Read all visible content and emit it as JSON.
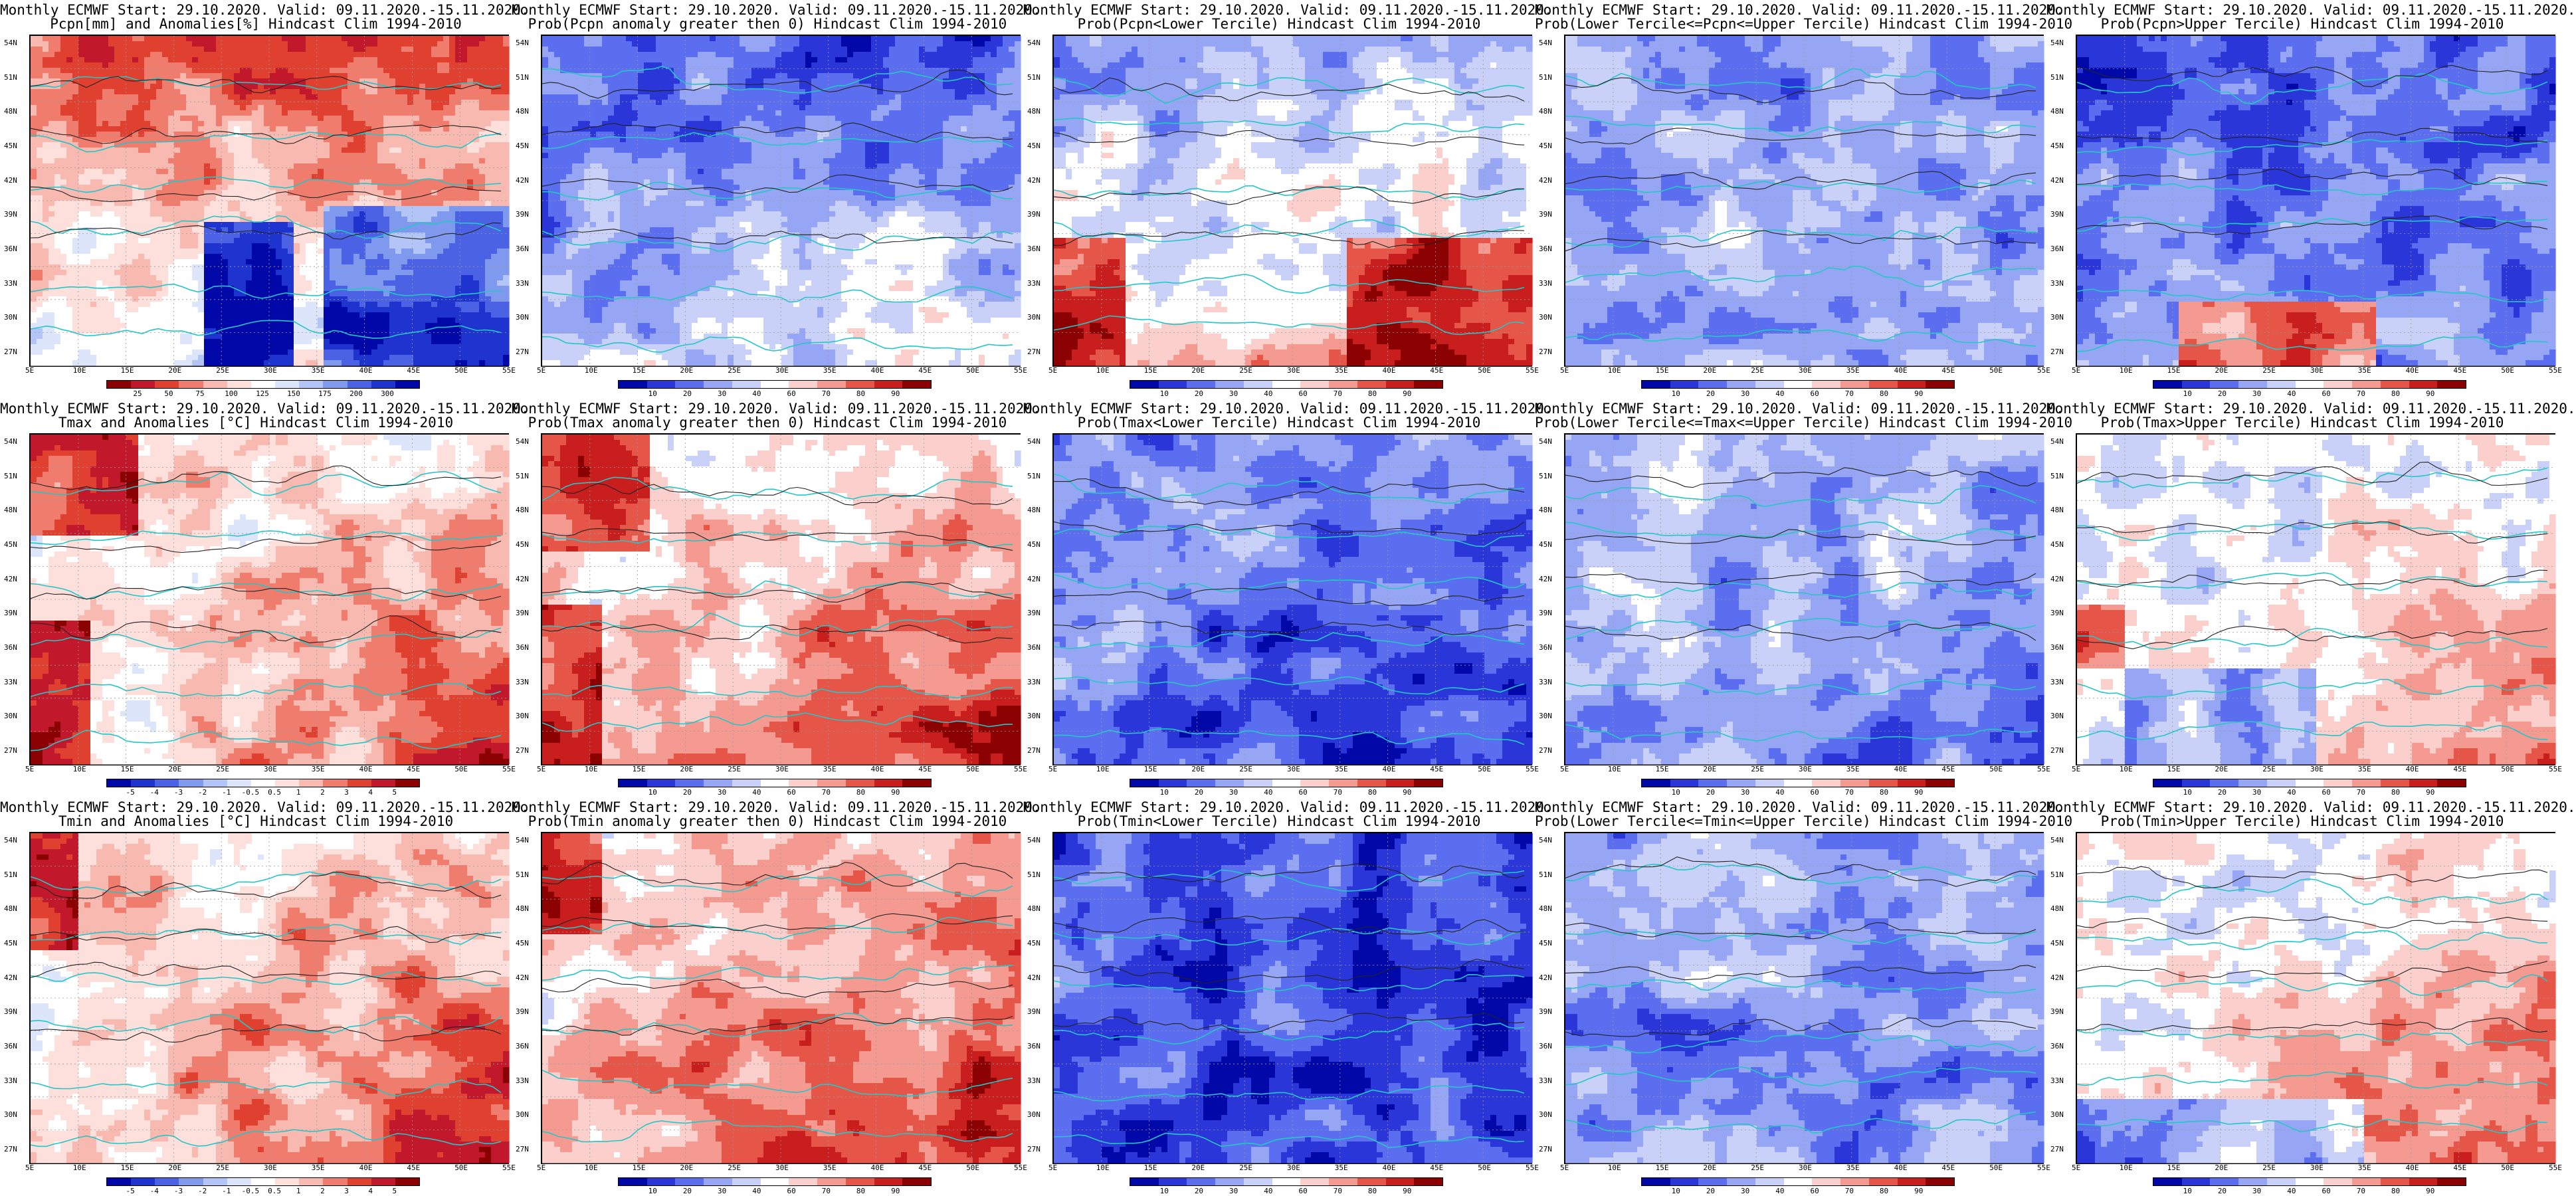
{
  "page": {
    "type": "map-panel-grid",
    "rows": 3,
    "cols": 5
  },
  "lat_ticks": [
    "54N",
    "51N",
    "48N",
    "45N",
    "42N",
    "39N",
    "36N",
    "33N",
    "30N",
    "27N"
  ],
  "lon_ticks": [
    "5E",
    "10E",
    "15E",
    "20E",
    "25E",
    "30E",
    "35E",
    "40E",
    "45E",
    "50E",
    "55E"
  ],
  "palettes": {
    "anomaly_precip": [
      "#8b0000",
      "#c2182b",
      "#e0402f",
      "#f07c6e",
      "#f8b9b0",
      "#fde0dc",
      "#ffffff",
      "#dde5fb",
      "#b3c4f6",
      "#7f99ee",
      "#4a62e3",
      "#1f33cf",
      "#0008a8"
    ],
    "anomaly_temp": [
      "#0008a8",
      "#1f33cf",
      "#4a62e3",
      "#7f99ee",
      "#b3c4f6",
      "#dde5fb",
      "#ffffff",
      "#fde0dc",
      "#f8b9b0",
      "#f07c6e",
      "#e0402f",
      "#c2182b",
      "#8b0000"
    ],
    "prob": [
      "#0008a8",
      "#2a36d8",
      "#5b6ef0",
      "#97a6f4",
      "#c9d1f8",
      "#ffffff",
      "#fbd0cc",
      "#f49a90",
      "#e55548",
      "#c81e1e",
      "#8b0000"
    ]
  },
  "panels": [
    {
      "line1": "Monthly ECMWF Start: 29.10.2020. Valid: 09.11.2020.-15.11.2020.",
      "line2": "Pcpn[mm] and Anomalies[%] Hindcast Clim 1994-2010",
      "palette": "anomaly_precip",
      "cb_labels": [
        "25",
        "50",
        "75",
        "100",
        "125",
        "150",
        "175",
        "200",
        "300"
      ],
      "field": "pcpn_anom"
    },
    {
      "line1": "Monthly ECMWF Start: 29.10.2020. Valid: 09.11.2020.-15.11.2020.",
      "line2": "Prob(Pcpn anomaly greater then 0) Hindcast Clim 1994-2010",
      "palette": "prob",
      "cb_labels": [
        "10",
        "20",
        "30",
        "40",
        "60",
        "70",
        "80",
        "90"
      ],
      "field": "pcpn_gt0"
    },
    {
      "line1": "Monthly ECMWF Start: 29.10.2020. Valid: 09.11.2020.-15.11.2020.",
      "line2": "Prob(Pcpn<Lower Tercile) Hindcast Clim 1994-2010",
      "palette": "prob",
      "cb_labels": [
        "10",
        "20",
        "30",
        "40",
        "60",
        "70",
        "80",
        "90"
      ],
      "field": "pcpn_low"
    },
    {
      "line1": "Monthly ECMWF Start: 29.10.2020. Valid: 09.11.2020.-15.11.2020.",
      "line2": "Prob(Lower Tercile<=Pcpn<=Upper Tercile) Hindcast Clim 1994-2010",
      "palette": "prob",
      "cb_labels": [
        "10",
        "20",
        "30",
        "40",
        "60",
        "70",
        "80",
        "90"
      ],
      "field": "pcpn_mid"
    },
    {
      "line1": "Monthly ECMWF Start: 29.10.2020. Valid: 09.11.2020.-15.11.2020.",
      "line2": "Prob(Pcpn>Upper Tercile) Hindcast Clim 1994-2010",
      "palette": "prob",
      "cb_labels": [
        "10",
        "20",
        "30",
        "40",
        "60",
        "70",
        "80",
        "90"
      ],
      "field": "pcpn_up"
    },
    {
      "line1": "Monthly ECMWF Start: 29.10.2020. Valid: 09.11.2020.-15.11.2020.",
      "line2": "Tmax and Anomalies [°C] Hindcast Clim 1994-2010",
      "palette": "anomaly_temp",
      "cb_labels": [
        "-5",
        "-4",
        "-3",
        "-2",
        "-1",
        "-0.5",
        "0.5",
        "1",
        "2",
        "3",
        "4",
        "5"
      ],
      "field": "tmax_anom"
    },
    {
      "line1": "Monthly ECMWF Start: 29.10.2020. Valid: 09.11.2020.-15.11.2020.",
      "line2": "Prob(Tmax anomaly greater then 0) Hindcast Clim 1994-2010",
      "palette": "prob",
      "cb_labels": [
        "10",
        "20",
        "30",
        "40",
        "60",
        "70",
        "80",
        "90"
      ],
      "field": "tmax_gt0"
    },
    {
      "line1": "Monthly ECMWF Start: 29.10.2020. Valid: 09.11.2020.-15.11.2020.",
      "line2": "Prob(Tmax<Lower Tercile) Hindcast Clim 1994-2010",
      "palette": "prob",
      "cb_labels": [
        "10",
        "20",
        "30",
        "40",
        "60",
        "70",
        "80",
        "90"
      ],
      "field": "tmax_low"
    },
    {
      "line1": "Monthly ECMWF Start: 29.10.2020. Valid: 09.11.2020.-15.11.2020.",
      "line2": "Prob(Lower Tercile<=Tmax<=Upper Tercile) Hindcast Clim 1994-2010",
      "palette": "prob",
      "cb_labels": [
        "10",
        "20",
        "30",
        "40",
        "60",
        "70",
        "80",
        "90"
      ],
      "field": "tmax_mid"
    },
    {
      "line1": "Monthly ECMWF Start: 29.10.2020. Valid: 09.11.2020.-15.11.2020.",
      "line2": "Prob(Tmax>Upper Tercile) Hindcast Clim 1994-2010",
      "palette": "prob",
      "cb_labels": [
        "10",
        "20",
        "30",
        "40",
        "60",
        "70",
        "80",
        "90"
      ],
      "field": "tmax_up"
    },
    {
      "line1": "Monthly ECMWF Start: 29.10.2020. Valid: 09.11.2020.-15.11.2020.",
      "line2": "Tmin and Anomalies [°C] Hindcast Clim 1994-2010",
      "palette": "anomaly_temp",
      "cb_labels": [
        "-5",
        "-4",
        "-3",
        "-2",
        "-1",
        "-0.5",
        "0.5",
        "1",
        "2",
        "3",
        "4",
        "5"
      ],
      "field": "tmin_anom"
    },
    {
      "line1": "Monthly ECMWF Start: 29.10.2020. Valid: 09.11.2020.-15.11.2020.",
      "line2": "Prob(Tmin anomaly greater then 0) Hindcast Clim 1994-2010",
      "palette": "prob",
      "cb_labels": [
        "10",
        "20",
        "30",
        "40",
        "60",
        "70",
        "80",
        "90"
      ],
      "field": "tmin_gt0"
    },
    {
      "line1": "Monthly ECMWF Start: 29.10.2020. Valid: 09.11.2020.-15.11.2020.",
      "line2": "Prob(Tmin<Lower Tercile) Hindcast Clim 1994-2010",
      "palette": "prob",
      "cb_labels": [
        "10",
        "20",
        "30",
        "40",
        "60",
        "70",
        "80",
        "90"
      ],
      "field": "tmin_low"
    },
    {
      "line1": "Monthly ECMWF Start: 29.10.2020. Valid: 09.11.2020.-15.11.2020.",
      "line2": "Prob(Lower Tercile<=Tmin<=Upper Tercile) Hindcast Clim 1994-2010",
      "palette": "prob",
      "cb_labels": [
        "10",
        "20",
        "30",
        "40",
        "60",
        "70",
        "80",
        "90"
      ],
      "field": "tmin_mid"
    },
    {
      "line1": "Monthly ECMWF Start: 29.10.2020. Valid: 09.11.2020.-15.11.2020.",
      "line2": "Prob(Tmin>Upper Tercile) Hindcast Clim 1994-2010",
      "palette": "prob",
      "cb_labels": [
        "10",
        "20",
        "30",
        "40",
        "60",
        "70",
        "80",
        "90"
      ],
      "field": "tmin_up"
    }
  ]
}
